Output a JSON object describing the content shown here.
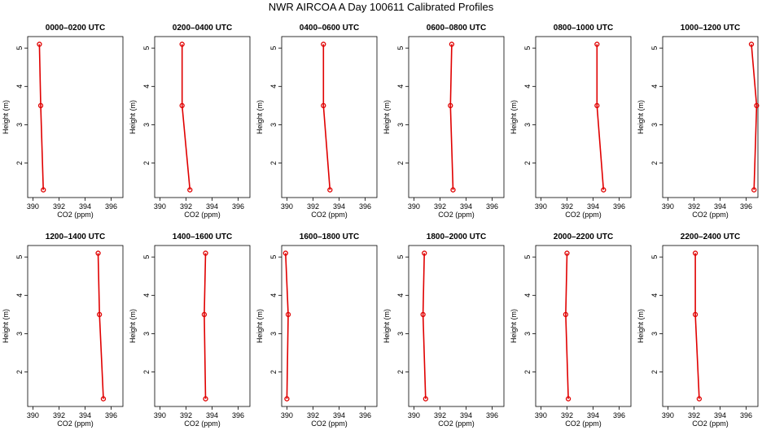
{
  "title": "NWR AIRCOA A  Day 100611  Calibrated Profiles",
  "colors": {
    "profile": "#e00000",
    "axis": "#000000",
    "background": "#ffffff"
  },
  "chart_data": [
    {
      "type": "line",
      "title": "0000–0200 UTC",
      "xlabel": "CO2 (ppm)",
      "ylabel": "Height (m)",
      "xlim": [
        389.6,
        396.9
      ],
      "ylim": [
        1.1,
        5.3
      ],
      "x_ticks": [
        390,
        392,
        394,
        396
      ],
      "y_ticks": [
        2,
        3,
        4,
        5
      ],
      "series": [
        {
          "name": "profile",
          "x": [
            390.5,
            390.6,
            390.8
          ],
          "y": [
            5.1,
            3.5,
            1.3
          ]
        }
      ]
    },
    {
      "type": "line",
      "title": "0200–0400 UTC",
      "xlabel": "CO2 (ppm)",
      "ylabel": "Height (m)",
      "xlim": [
        389.6,
        396.9
      ],
      "ylim": [
        1.1,
        5.3
      ],
      "x_ticks": [
        390,
        392,
        394,
        396
      ],
      "y_ticks": [
        2,
        3,
        4,
        5
      ],
      "series": [
        {
          "name": "profile",
          "x": [
            391.7,
            391.7,
            392.3
          ],
          "y": [
            5.1,
            3.5,
            1.3
          ]
        }
      ]
    },
    {
      "type": "line",
      "title": "0400–0600 UTC",
      "xlabel": "CO2 (ppm)",
      "ylabel": "Height (m)",
      "xlim": [
        389.6,
        396.9
      ],
      "ylim": [
        1.1,
        5.3
      ],
      "x_ticks": [
        390,
        392,
        394,
        396
      ],
      "y_ticks": [
        2,
        3,
        4,
        5
      ],
      "series": [
        {
          "name": "profile",
          "x": [
            392.8,
            392.8,
            393.3
          ],
          "y": [
            5.1,
            3.5,
            1.3
          ]
        }
      ]
    },
    {
      "type": "line",
      "title": "0600–0800 UTC",
      "xlabel": "CO2 (ppm)",
      "ylabel": "Height (m)",
      "xlim": [
        389.6,
        396.9
      ],
      "ylim": [
        1.1,
        5.3
      ],
      "x_ticks": [
        390,
        392,
        394,
        396
      ],
      "y_ticks": [
        2,
        3,
        4,
        5
      ],
      "series": [
        {
          "name": "profile",
          "x": [
            392.9,
            392.8,
            393.0
          ],
          "y": [
            5.1,
            3.5,
            1.3
          ]
        }
      ]
    },
    {
      "type": "line",
      "title": "0800–1000 UTC",
      "xlabel": "CO2 (ppm)",
      "ylabel": "Height (m)",
      "xlim": [
        389.6,
        396.9
      ],
      "ylim": [
        1.1,
        5.3
      ],
      "x_ticks": [
        390,
        392,
        394,
        396
      ],
      "y_ticks": [
        2,
        3,
        4,
        5
      ],
      "series": [
        {
          "name": "profile",
          "x": [
            394.3,
            394.3,
            394.8
          ],
          "y": [
            5.1,
            3.5,
            1.3
          ]
        }
      ]
    },
    {
      "type": "line",
      "title": "1000–1200 UTC",
      "xlabel": "CO2 (ppm)",
      "ylabel": "Height (m)",
      "xlim": [
        389.6,
        396.9
      ],
      "ylim": [
        1.1,
        5.3
      ],
      "x_ticks": [
        390,
        392,
        394,
        396
      ],
      "y_ticks": [
        2,
        3,
        4,
        5
      ],
      "series": [
        {
          "name": "profile",
          "x": [
            396.4,
            396.8,
            396.6
          ],
          "y": [
            5.1,
            3.5,
            1.3
          ]
        }
      ]
    },
    {
      "type": "line",
      "title": "1200–1400 UTC",
      "xlabel": "CO2 (ppm)",
      "ylabel": "Height (m)",
      "xlim": [
        389.6,
        396.9
      ],
      "ylim": [
        1.1,
        5.3
      ],
      "x_ticks": [
        390,
        392,
        394,
        396
      ],
      "y_ticks": [
        2,
        3,
        4,
        5
      ],
      "series": [
        {
          "name": "profile",
          "x": [
            395.0,
            395.1,
            395.4
          ],
          "y": [
            5.1,
            3.5,
            1.3
          ]
        }
      ]
    },
    {
      "type": "line",
      "title": "1400–1600 UTC",
      "xlabel": "CO2 (ppm)",
      "ylabel": "Height (m)",
      "xlim": [
        389.6,
        396.9
      ],
      "ylim": [
        1.1,
        5.3
      ],
      "x_ticks": [
        390,
        392,
        394,
        396
      ],
      "y_ticks": [
        2,
        3,
        4,
        5
      ],
      "series": [
        {
          "name": "profile",
          "x": [
            393.5,
            393.4,
            393.5
          ],
          "y": [
            5.1,
            3.5,
            1.3
          ]
        }
      ]
    },
    {
      "type": "line",
      "title": "1600–1800 UTC",
      "xlabel": "CO2 (ppm)",
      "ylabel": "Height (m)",
      "xlim": [
        389.6,
        396.9
      ],
      "ylim": [
        1.1,
        5.3
      ],
      "x_ticks": [
        390,
        392,
        394,
        396
      ],
      "y_ticks": [
        2,
        3,
        4,
        5
      ],
      "series": [
        {
          "name": "profile",
          "x": [
            389.9,
            390.1,
            390.0
          ],
          "y": [
            5.1,
            3.5,
            1.3
          ]
        }
      ]
    },
    {
      "type": "line",
      "title": "1800–2000 UTC",
      "xlabel": "CO2 (ppm)",
      "ylabel": "Height (m)",
      "xlim": [
        389.6,
        396.9
      ],
      "ylim": [
        1.1,
        5.3
      ],
      "x_ticks": [
        390,
        392,
        394,
        396
      ],
      "y_ticks": [
        2,
        3,
        4,
        5
      ],
      "series": [
        {
          "name": "profile",
          "x": [
            390.8,
            390.7,
            390.9
          ],
          "y": [
            5.1,
            3.5,
            1.3
          ]
        }
      ]
    },
    {
      "type": "line",
      "title": "2000–2200 UTC",
      "xlabel": "CO2 (ppm)",
      "ylabel": "Height (m)",
      "xlim": [
        389.6,
        396.9
      ],
      "ylim": [
        1.1,
        5.3
      ],
      "x_ticks": [
        390,
        392,
        394,
        396
      ],
      "y_ticks": [
        2,
        3,
        4,
        5
      ],
      "series": [
        {
          "name": "profile",
          "x": [
            392.0,
            391.9,
            392.1
          ],
          "y": [
            5.1,
            3.5,
            1.3
          ]
        }
      ]
    },
    {
      "type": "line",
      "title": "2200–2400 UTC",
      "xlabel": "CO2 (ppm)",
      "ylabel": "Height (m)",
      "xlim": [
        389.6,
        396.9
      ],
      "ylim": [
        1.1,
        5.3
      ],
      "x_ticks": [
        390,
        392,
        394,
        396
      ],
      "y_ticks": [
        2,
        3,
        4,
        5
      ],
      "series": [
        {
          "name": "profile",
          "x": [
            392.1,
            392.1,
            392.4
          ],
          "y": [
            5.1,
            3.5,
            1.3
          ]
        }
      ]
    }
  ]
}
